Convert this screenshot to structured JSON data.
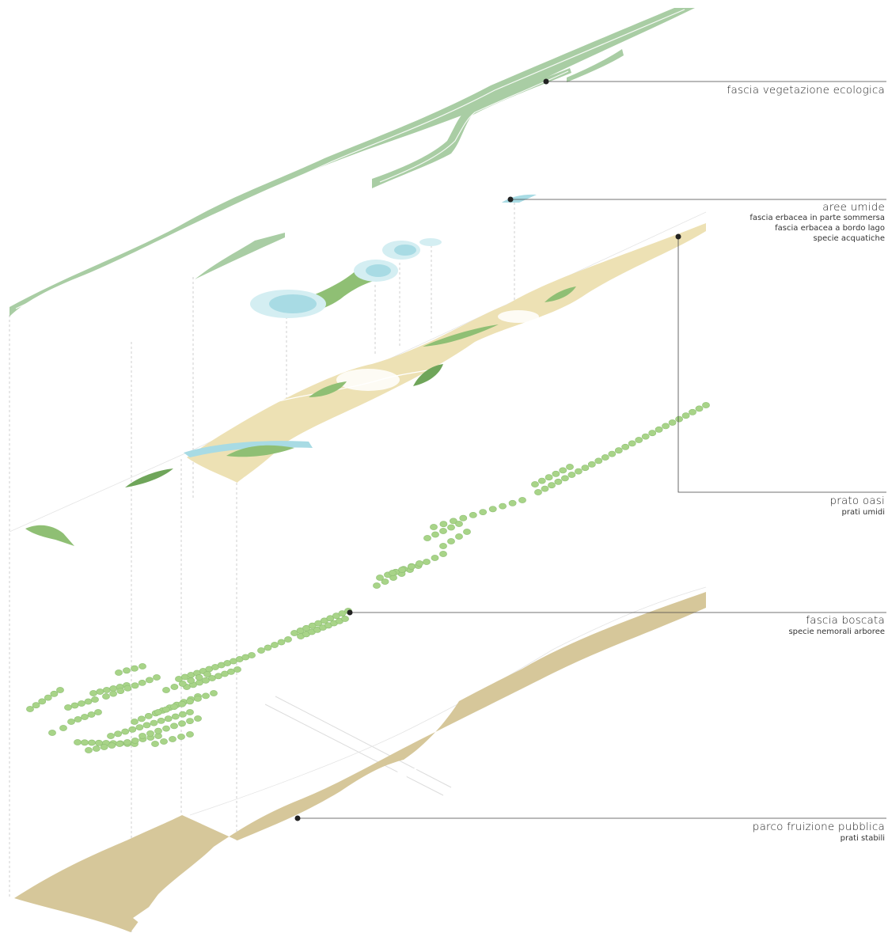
{
  "colors": {
    "vegetation": "#a9cda4",
    "wetland_light": "#d4eef2",
    "wetland": "#a8dbe4",
    "meadow_sand": "#ede1b4",
    "meadow_green": "#8fbf74",
    "meadow_green_dark": "#6fa55a",
    "trees": "#a8d488",
    "tree_dark": "#8fbf74",
    "park": "#d6c79a",
    "leader": "#444444",
    "dot": "#222222"
  },
  "layers": [
    {
      "id": "vegetation",
      "title": "fascia vegetazione ecologica",
      "subtitles": []
    },
    {
      "id": "wetland",
      "title": "aree umide",
      "subtitles": [
        "fascia erbacea in parte sommersa",
        "fascia erbacea a bordo lago",
        "specie acquatiche"
      ]
    },
    {
      "id": "meadow",
      "title": "prato oasi",
      "subtitles": [
        "prati umidi"
      ]
    },
    {
      "id": "forest",
      "title": "fascia boscata",
      "subtitles": [
        "specie nemorali arboree"
      ]
    },
    {
      "id": "park",
      "title": "parco fruizione pubblica",
      "subtitles": [
        "prati stabili"
      ]
    }
  ]
}
